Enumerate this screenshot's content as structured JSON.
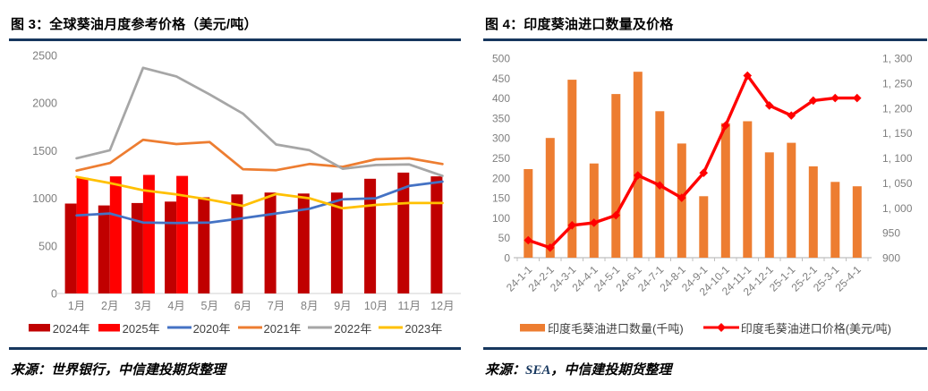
{
  "left_panel": {
    "title": "图 3：全球葵油月度参考价格（美元/吨）",
    "source_prefix": "来源：",
    "source_org": "世界银行",
    "source_suffix": "，中信建投期货整理"
  },
  "right_panel": {
    "title": "图 4：印度葵油进口数量及价格",
    "source_prefix": "来源：",
    "source_org": "SEA",
    "source_suffix": "，中信建投期货整理"
  },
  "colors": {
    "accent_rule": "#17375E",
    "axis_text": "#7F7F7F",
    "axis_line": "#D9D9D9",
    "tick_line": "#BFBFBF",
    "dark_red": "#C00000",
    "bright_red": "#FF0000",
    "blue": "#4472C4",
    "orange": "#ED7D31",
    "gray": "#A6A6A6",
    "yellow": "#FFC000"
  },
  "chart_data": [
    {
      "id": "figure-3",
      "type": "bar",
      "title": "全球葵油月度参考价格（美元/吨）",
      "categories": [
        "1月",
        "2月",
        "3月",
        "4月",
        "5月",
        "6月",
        "7月",
        "8月",
        "9月",
        "10月",
        "11月",
        "12月"
      ],
      "ylim": [
        0,
        2500
      ],
      "yticks": [
        "0",
        "500",
        "1000",
        "1500",
        "2000",
        "2500"
      ],
      "grid": false,
      "legend_position": "bottom",
      "series": [
        {
          "name": "2024年",
          "kind": "bar",
          "color": "#C00000",
          "values": [
            945,
            925,
            950,
            965,
            1010,
            1040,
            1060,
            1050,
            1060,
            1205,
            1270,
            1230
          ]
        },
        {
          "name": "2025年",
          "kind": "bar",
          "color": "#FF0000",
          "values": [
            1215,
            1230,
            1245,
            1235,
            null,
            null,
            null,
            null,
            null,
            null,
            null,
            null
          ]
        },
        {
          "name": "2020年",
          "kind": "line",
          "color": "#4472C4",
          "values": [
            820,
            840,
            745,
            740,
            745,
            790,
            840,
            890,
            990,
            1000,
            1130,
            1175
          ]
        },
        {
          "name": "2021年",
          "kind": "line",
          "color": "#ED7D31",
          "values": [
            1290,
            1370,
            1615,
            1570,
            1590,
            1305,
            1295,
            1360,
            1330,
            1410,
            1420,
            1360
          ]
        },
        {
          "name": "2022年",
          "kind": "line",
          "color": "#A6A6A6",
          "values": [
            1420,
            1505,
            2370,
            2280,
            2090,
            1890,
            1565,
            1505,
            1310,
            1350,
            1355,
            1235
          ]
        },
        {
          "name": "2023年",
          "kind": "line",
          "color": "#FFC000",
          "values": [
            1225,
            1160,
            1085,
            1040,
            985,
            920,
            1045,
            1000,
            895,
            930,
            950,
            950
          ]
        }
      ]
    },
    {
      "id": "figure-4",
      "type": "bar",
      "title": "印度葵油进口数量及价格",
      "categories": [
        "24-1-1",
        "24-2-1",
        "24-3-1",
        "24-4-1",
        "24-5-1",
        "24-6-1",
        "24-7-1",
        "24-8-1",
        "24-9-1",
        "24-10-1",
        "24-11-1",
        "24-12-1",
        "25-1-1",
        "25-2-1",
        "25-3-1",
        "25-4-1"
      ],
      "ylim_left": [
        0,
        500
      ],
      "yticks_left": [
        "0",
        "50",
        "100",
        "150",
        "200",
        "250",
        "300",
        "350",
        "400",
        "450",
        "500"
      ],
      "ylim_right": [
        900,
        1300
      ],
      "yticks_right": [
        "900",
        "950",
        "1, 000",
        "1, 050",
        "1, 100",
        "1, 150",
        "1, 200",
        "1, 250",
        "1, 300"
      ],
      "grid": false,
      "legend_position": "bottom",
      "series": [
        {
          "name": "印度毛葵油进口数量(千吨)",
          "kind": "bar",
          "axis": "left",
          "color": "#ED7D31",
          "values": [
            222,
            300,
            446,
            236,
            410,
            466,
            367,
            286,
            154,
            337,
            342,
            264,
            288,
            229,
            190,
            179
          ]
        },
        {
          "name": "印度毛葵油进口价格(美元/吨)",
          "kind": "line",
          "axis": "right",
          "color": "#FF0000",
          "marker": "diamond",
          "values": [
            935,
            920,
            965,
            970,
            985,
            1065,
            1045,
            1020,
            1070,
            1165,
            1265,
            1205,
            1185,
            1215,
            1220,
            1220
          ]
        }
      ]
    }
  ]
}
